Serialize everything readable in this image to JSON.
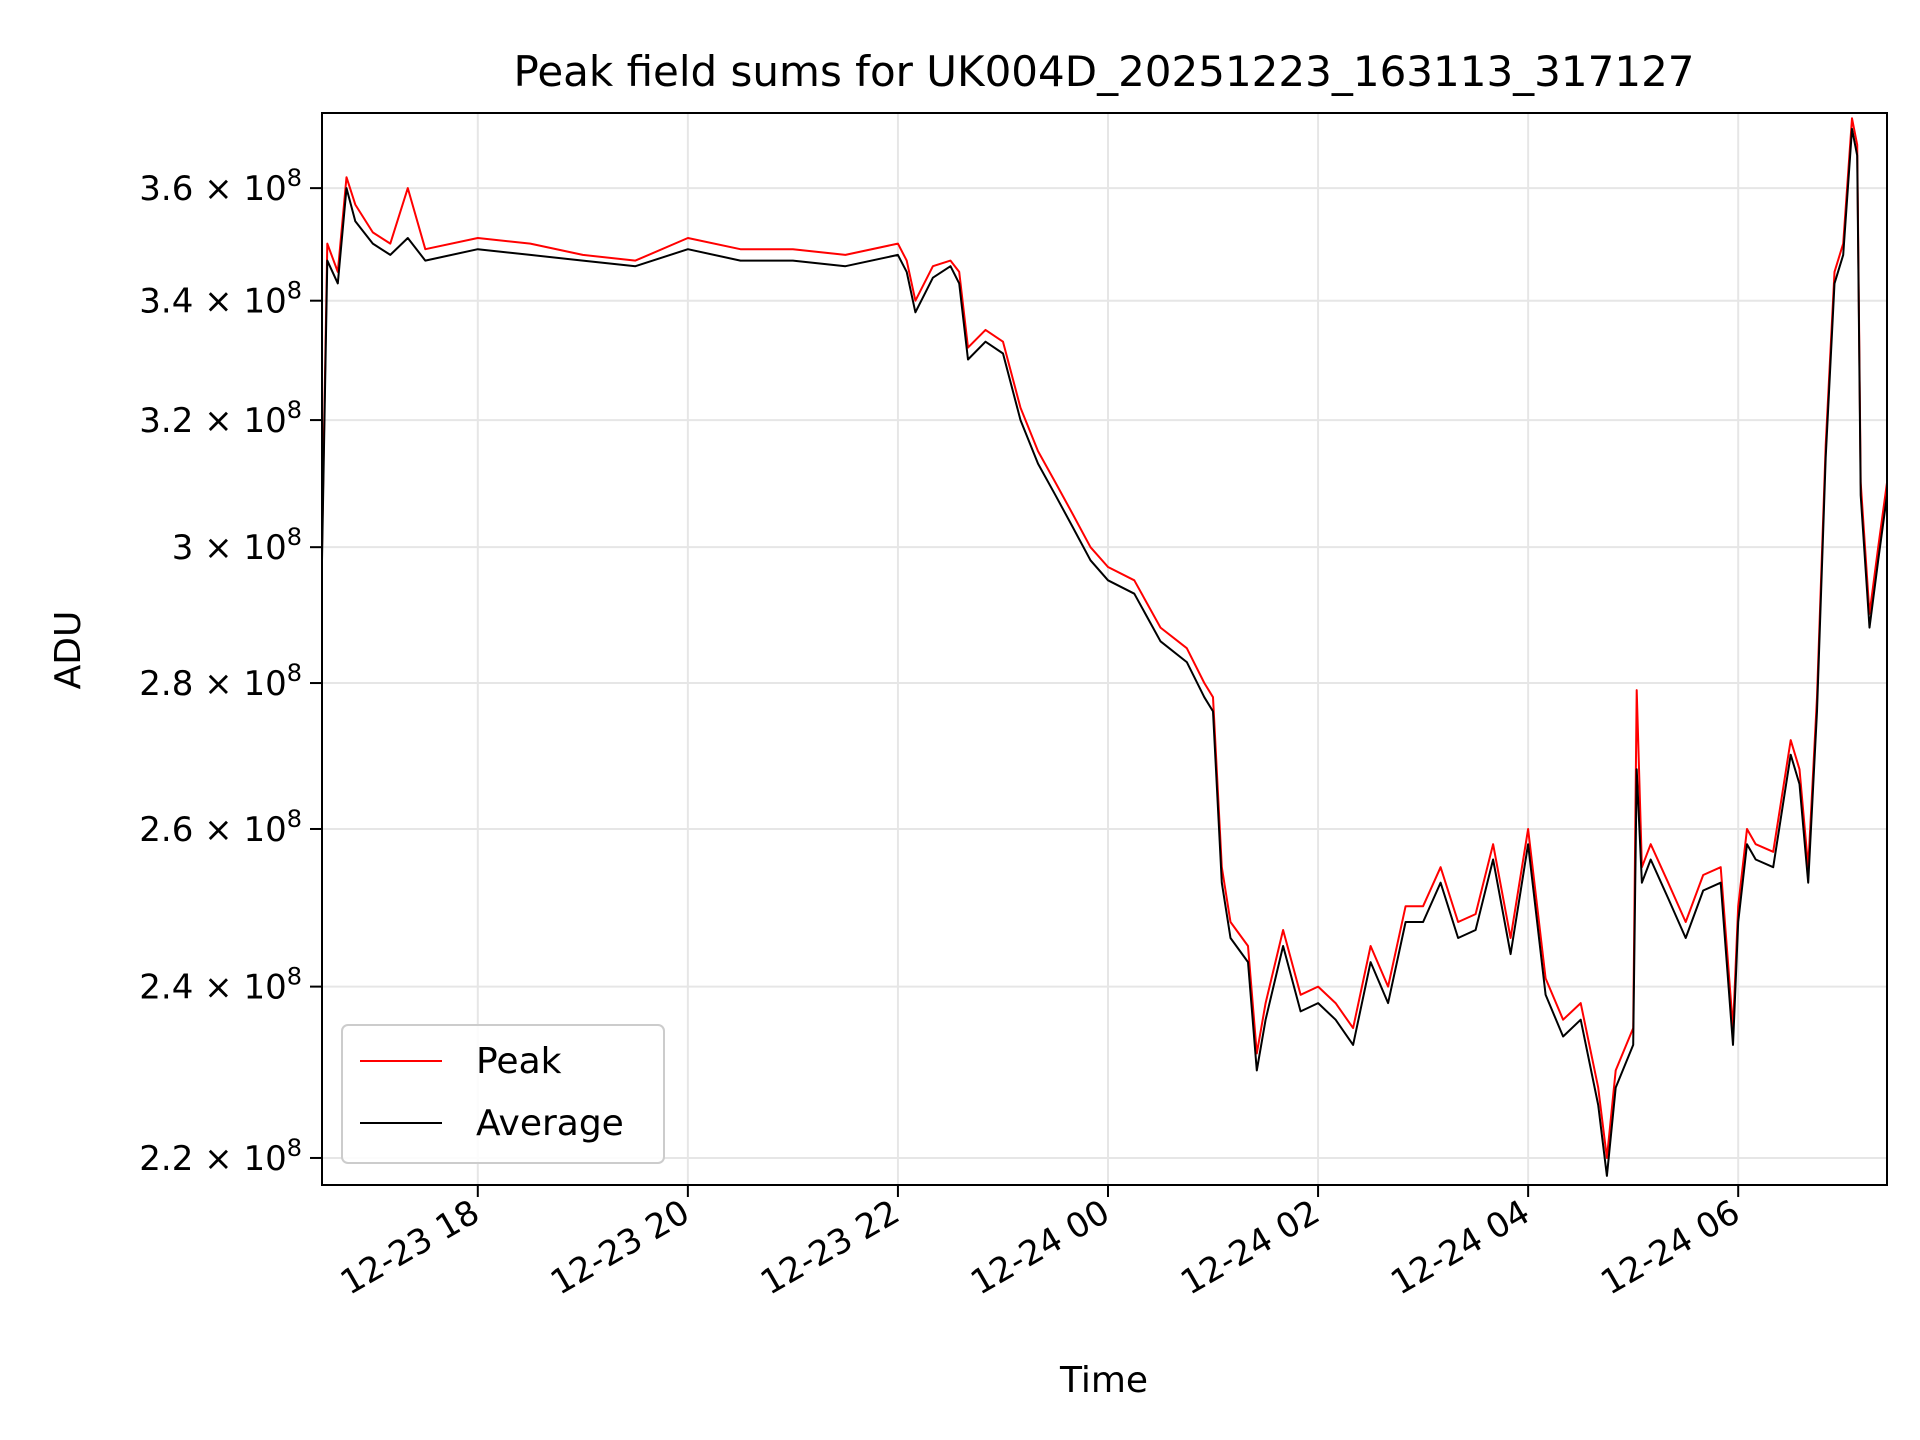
{
  "chart_data": {
    "type": "line",
    "title": "Peak field sums for UK004D_20251223_163113_317127",
    "xlabel": "Time",
    "ylabel": "ADU",
    "yscale": "log",
    "grid": true,
    "legend_position": "lower-left",
    "xlim": [
      "2025-12-23 16:31",
      "2025-12-24 07:25"
    ],
    "ylim": [
      217000000,
      374000000
    ],
    "x_ticks": [
      "2025-12-23 18:00",
      "2025-12-23 20:00",
      "2025-12-23 22:00",
      "2025-12-24 00:00",
      "2025-12-24 02:00",
      "2025-12-24 04:00",
      "2025-12-24 06:00"
    ],
    "x_tick_labels": [
      "12-23 18",
      "12-23 20",
      "12-23 22",
      "12-24 00",
      "12-24 02",
      "12-24 04",
      "12-24 06"
    ],
    "y_ticks": [
      220000000,
      240000000,
      260000000,
      280000000,
      300000000,
      320000000,
      340000000,
      360000000
    ],
    "y_tick_labels": [
      {
        "mantissa": "2.2",
        "exp": "8"
      },
      {
        "mantissa": "2.4",
        "exp": "8"
      },
      {
        "mantissa": "2.6",
        "exp": "8"
      },
      {
        "mantissa": "2.8",
        "exp": "8"
      },
      {
        "mantissa": "3",
        "exp": "8"
      },
      {
        "mantissa": "3.2",
        "exp": "8"
      },
      {
        "mantissa": "3.4",
        "exp": "8"
      },
      {
        "mantissa": "3.6",
        "exp": "8"
      }
    ],
    "series": [
      {
        "name": "Peak",
        "color": "#ff0000",
        "x": [
          "2025-12-23 16:31",
          "2025-12-23 16:34",
          "2025-12-23 16:40",
          "2025-12-23 16:45",
          "2025-12-23 16:50",
          "2025-12-23 17:00",
          "2025-12-23 17:10",
          "2025-12-23 17:20",
          "2025-12-23 17:30",
          "2025-12-23 18:00",
          "2025-12-23 18:30",
          "2025-12-23 19:00",
          "2025-12-23 19:30",
          "2025-12-23 20:00",
          "2025-12-23 20:30",
          "2025-12-23 21:00",
          "2025-12-23 21:30",
          "2025-12-23 22:00",
          "2025-12-23 22:05",
          "2025-12-23 22:10",
          "2025-12-23 22:20",
          "2025-12-23 22:30",
          "2025-12-23 22:35",
          "2025-12-23 22:40",
          "2025-12-23 22:50",
          "2025-12-23 23:00",
          "2025-12-23 23:10",
          "2025-12-23 23:20",
          "2025-12-23 23:30",
          "2025-12-23 23:40",
          "2025-12-23 23:50",
          "2025-12-24 00:00",
          "2025-12-24 00:15",
          "2025-12-24 00:30",
          "2025-12-24 00:45",
          "2025-12-24 00:55",
          "2025-12-24 01:00",
          "2025-12-24 01:05",
          "2025-12-24 01:10",
          "2025-12-24 01:20",
          "2025-12-24 01:25",
          "2025-12-24 01:30",
          "2025-12-24 01:40",
          "2025-12-24 01:50",
          "2025-12-24 02:00",
          "2025-12-24 02:10",
          "2025-12-24 02:20",
          "2025-12-24 02:30",
          "2025-12-24 02:40",
          "2025-12-24 02:50",
          "2025-12-24 03:00",
          "2025-12-24 03:10",
          "2025-12-24 03:20",
          "2025-12-24 03:30",
          "2025-12-24 03:40",
          "2025-12-24 03:50",
          "2025-12-24 04:00",
          "2025-12-24 04:10",
          "2025-12-24 04:20",
          "2025-12-24 04:30",
          "2025-12-24 04:40",
          "2025-12-24 04:45",
          "2025-12-24 04:50",
          "2025-12-24 05:00",
          "2025-12-24 05:02",
          "2025-12-24 05:05",
          "2025-12-24 05:10",
          "2025-12-24 05:20",
          "2025-12-24 05:30",
          "2025-12-24 05:40",
          "2025-12-24 05:50",
          "2025-12-24 05:57",
          "2025-12-24 06:00",
          "2025-12-24 06:05",
          "2025-12-24 06:10",
          "2025-12-24 06:20",
          "2025-12-24 06:30",
          "2025-12-24 06:35",
          "2025-12-24 06:40",
          "2025-12-24 06:45",
          "2025-12-24 06:50",
          "2025-12-24 06:55",
          "2025-12-24 07:00",
          "2025-12-24 07:05",
          "2025-12-24 07:08",
          "2025-12-24 07:10",
          "2025-12-24 07:15",
          "2025-12-24 07:20",
          "2025-12-24 07:25"
        ],
        "values": [
          300000000,
          350000000,
          345000000,
          362000000,
          357000000,
          352000000,
          350000000,
          360000000,
          349000000,
          351000000,
          350000000,
          348000000,
          347000000,
          351000000,
          349000000,
          349000000,
          348000000,
          350000000,
          347000000,
          340000000,
          346000000,
          347000000,
          345000000,
          332000000,
          335000000,
          333000000,
          322000000,
          315000000,
          310000000,
          305000000,
          300000000,
          297000000,
          295000000,
          288000000,
          285000000,
          280000000,
          278000000,
          255000000,
          248000000,
          245000000,
          232000000,
          238000000,
          247000000,
          239000000,
          240000000,
          238000000,
          235000000,
          245000000,
          240000000,
          250000000,
          250000000,
          255000000,
          248000000,
          249000000,
          258000000,
          246000000,
          260000000,
          241000000,
          236000000,
          238000000,
          228000000,
          220000000,
          230000000,
          235000000,
          279000000,
          255000000,
          258000000,
          253000000,
          248000000,
          254000000,
          255000000,
          235000000,
          250000000,
          260000000,
          258000000,
          257000000,
          272000000,
          268000000,
          255000000,
          278000000,
          316000000,
          345000000,
          350000000,
          373000000,
          368000000,
          310000000,
          290000000,
          300000000,
          310000000
        ]
      },
      {
        "name": "Average",
        "color": "#000000",
        "x": [
          "2025-12-23 16:31",
          "2025-12-23 16:34",
          "2025-12-23 16:40",
          "2025-12-23 16:45",
          "2025-12-23 16:50",
          "2025-12-23 17:00",
          "2025-12-23 17:10",
          "2025-12-23 17:20",
          "2025-12-23 17:30",
          "2025-12-23 18:00",
          "2025-12-23 18:30",
          "2025-12-23 19:00",
          "2025-12-23 19:30",
          "2025-12-23 20:00",
          "2025-12-23 20:30",
          "2025-12-23 21:00",
          "2025-12-23 21:30",
          "2025-12-23 22:00",
          "2025-12-23 22:05",
          "2025-12-23 22:10",
          "2025-12-23 22:20",
          "2025-12-23 22:30",
          "2025-12-23 22:35",
          "2025-12-23 22:40",
          "2025-12-23 22:50",
          "2025-12-23 23:00",
          "2025-12-23 23:10",
          "2025-12-23 23:20",
          "2025-12-23 23:30",
          "2025-12-23 23:40",
          "2025-12-23 23:50",
          "2025-12-24 00:00",
          "2025-12-24 00:15",
          "2025-12-24 00:30",
          "2025-12-24 00:45",
          "2025-12-24 00:55",
          "2025-12-24 01:00",
          "2025-12-24 01:05",
          "2025-12-24 01:10",
          "2025-12-24 01:20",
          "2025-12-24 01:25",
          "2025-12-24 01:30",
          "2025-12-24 01:40",
          "2025-12-24 01:50",
          "2025-12-24 02:00",
          "2025-12-24 02:10",
          "2025-12-24 02:20",
          "2025-12-24 02:30",
          "2025-12-24 02:40",
          "2025-12-24 02:50",
          "2025-12-24 03:00",
          "2025-12-24 03:10",
          "2025-12-24 03:20",
          "2025-12-24 03:30",
          "2025-12-24 03:40",
          "2025-12-24 03:50",
          "2025-12-24 04:00",
          "2025-12-24 04:10",
          "2025-12-24 04:20",
          "2025-12-24 04:30",
          "2025-12-24 04:40",
          "2025-12-24 04:45",
          "2025-12-24 04:50",
          "2025-12-24 05:00",
          "2025-12-24 05:02",
          "2025-12-24 05:05",
          "2025-12-24 05:10",
          "2025-12-24 05:20",
          "2025-12-24 05:30",
          "2025-12-24 05:40",
          "2025-12-24 05:50",
          "2025-12-24 05:57",
          "2025-12-24 06:00",
          "2025-12-24 06:05",
          "2025-12-24 06:10",
          "2025-12-24 06:20",
          "2025-12-24 06:30",
          "2025-12-24 06:35",
          "2025-12-24 06:40",
          "2025-12-24 06:45",
          "2025-12-24 06:50",
          "2025-12-24 06:55",
          "2025-12-24 07:00",
          "2025-12-24 07:05",
          "2025-12-24 07:08",
          "2025-12-24 07:10",
          "2025-12-24 07:15",
          "2025-12-24 07:20",
          "2025-12-24 07:25"
        ],
        "values": [
          298000000,
          347000000,
          343000000,
          360000000,
          354000000,
          350000000,
          348000000,
          351000000,
          347000000,
          349000000,
          348000000,
          347000000,
          346000000,
          349000000,
          347000000,
          347000000,
          346000000,
          348000000,
          345000000,
          338000000,
          344000000,
          346000000,
          343000000,
          330000000,
          333000000,
          331000000,
          320000000,
          313000000,
          308000000,
          303000000,
          298000000,
          295000000,
          293000000,
          286000000,
          283000000,
          278000000,
          276000000,
          253000000,
          246000000,
          243000000,
          230000000,
          236000000,
          245000000,
          237000000,
          238000000,
          236000000,
          233000000,
          243000000,
          238000000,
          248000000,
          248000000,
          253000000,
          246000000,
          247000000,
          256000000,
          244000000,
          258000000,
          239000000,
          234000000,
          236000000,
          226000000,
          218000000,
          228000000,
          233000000,
          268000000,
          253000000,
          256000000,
          251000000,
          246000000,
          252000000,
          253000000,
          233000000,
          248000000,
          258000000,
          256000000,
          255000000,
          270000000,
          266000000,
          253000000,
          276000000,
          314000000,
          343000000,
          348000000,
          371000000,
          366000000,
          308000000,
          288000000,
          298000000,
          308000000
        ]
      }
    ]
  }
}
